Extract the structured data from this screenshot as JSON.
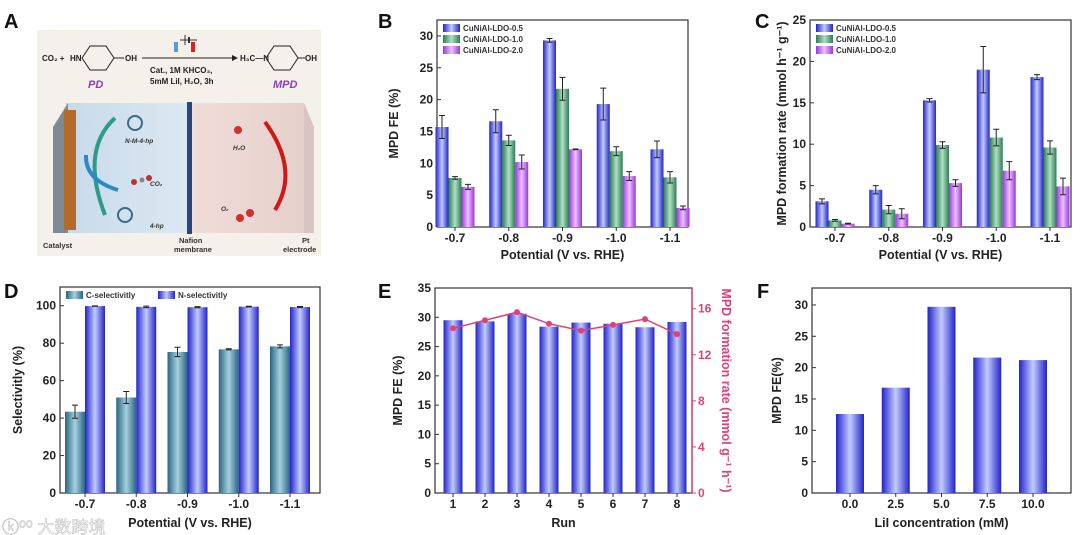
{
  "panel_letters": [
    "A",
    "B",
    "C",
    "D",
    "E",
    "F"
  ],
  "scheme": {
    "reactant_prefix": "CO₂ +",
    "reactant_nh": "HN",
    "oh": "OH",
    "product_prefix": "H₃C—N",
    "conditions_line1": "Cat., 1M KHCO₃,",
    "conditions_line2": "5mM LiI, H₂O, 3h",
    "reactant_name": "PD",
    "product_name": "MPD",
    "molecules": [
      "N-M-4-hp",
      "CO₂",
      "4-hp",
      "H₂O",
      "O₂"
    ],
    "catalyst_label": "Catalyst",
    "membrane_label_1": "Nafion",
    "membrane_label_2": "membrane",
    "electrode_label_1": "Pt",
    "electrode_label_2": "electrode"
  },
  "watermark": "大数跨境",
  "colors": {
    "blue": "#2b2bd6",
    "green": "#2f8a5a",
    "purple": "#a040e0",
    "teal": "#2f6f88",
    "pink": "#e0407a"
  },
  "chart_data": [
    {
      "id": "B",
      "type": "bar",
      "categories": [
        "-0.7",
        "-0.8",
        "-0.9",
        "-1.0",
        "-1.1"
      ],
      "xlabel": "Potential (V vs. RHE)",
      "ylabel": "MPD FE (%)",
      "ylim": [
        0,
        32.5
      ],
      "yticks": [
        0,
        5,
        10,
        15,
        20,
        25,
        30
      ],
      "legend": "top-left",
      "series": [
        {
          "name": "CuNiAl-LDO-0.5",
          "color": "blue",
          "values": [
            15.7,
            16.6,
            29.3,
            19.3,
            12.2
          ],
          "errors": [
            1.8,
            1.8,
            0.3,
            2.5,
            1.3
          ]
        },
        {
          "name": "CuNiAl-LDO-1.0",
          "color": "green",
          "values": [
            7.7,
            13.6,
            21.7,
            11.9,
            7.8
          ],
          "errors": [
            0.2,
            0.8,
            1.8,
            0.7,
            0.9
          ]
        },
        {
          "name": "CuNiAl-LDO-2.0",
          "color": "purple",
          "values": [
            6.3,
            10.2,
            12.2,
            8.0,
            3.0
          ],
          "errors": [
            0.4,
            1.1,
            0.05,
            0.7,
            0.3
          ]
        }
      ]
    },
    {
      "id": "C",
      "type": "bar",
      "categories": [
        "-0.7",
        "-0.8",
        "-0.9",
        "-1.0",
        "-1.1"
      ],
      "xlabel": "Potential (V vs. RHE)",
      "ylabel": "MPD formation rate  (mmol h⁻¹ g⁻¹)",
      "ylim": [
        0,
        25
      ],
      "yticks": [
        0,
        5,
        10,
        15,
        20,
        25
      ],
      "legend": "top-left",
      "series": [
        {
          "name": "CuNiAl-LDO-0.5",
          "color": "blue",
          "values": [
            3.1,
            4.5,
            15.3,
            19.0,
            18.1
          ],
          "errors": [
            0.3,
            0.5,
            0.2,
            2.8,
            0.3
          ]
        },
        {
          "name": "CuNiAl-LDO-1.0",
          "color": "green",
          "values": [
            0.8,
            2.1,
            9.9,
            10.8,
            9.6
          ],
          "errors": [
            0.1,
            0.5,
            0.4,
            1.0,
            0.8
          ]
        },
        {
          "name": "CuNiAl-LDO-2.0",
          "color": "purple",
          "values": [
            0.4,
            1.6,
            5.3,
            6.8,
            4.9
          ],
          "errors": [
            0.05,
            0.6,
            0.4,
            1.1,
            1.0
          ]
        }
      ]
    },
    {
      "id": "D",
      "type": "bar",
      "categories": [
        "-0.7",
        "-0.8",
        "-0.9",
        "-1.0",
        "-1.1"
      ],
      "xlabel": "Potential (V vs. RHE)",
      "ylabel": "Selectivitly (%)",
      "ylim": [
        0,
        110
      ],
      "yticks": [
        0,
        20,
        40,
        60,
        80,
        100
      ],
      "legend": "top",
      "series": [
        {
          "name": "C-selectivitly",
          "color": "teal",
          "values": [
            43.4,
            51.0,
            75.3,
            76.7,
            78.3
          ],
          "errors": [
            3.5,
            3.2,
            2.5,
            0.3,
            0.8
          ]
        },
        {
          "name": "N-selectivitly",
          "color": "blue",
          "values": [
            99.8,
            99.4,
            99.2,
            99.5,
            99.3
          ],
          "errors": [
            0.1,
            0.4,
            0.3,
            0.2,
            0.3
          ]
        }
      ]
    },
    {
      "id": "E",
      "type": "bar+line",
      "categories": [
        "1",
        "2",
        "3",
        "4",
        "5",
        "6",
        "7",
        "8"
      ],
      "xlabel": "Run",
      "ylabel": "MPD FE (%)",
      "y2label": "MPD formation rate (mmol g⁻¹ h⁻¹)",
      "ylim": [
        0,
        35
      ],
      "yticks": [
        0,
        5,
        10,
        15,
        20,
        25,
        30,
        35
      ],
      "y2lim": [
        0,
        17.8
      ],
      "y2ticks": [
        0,
        4,
        8,
        12,
        16
      ],
      "series": [
        {
          "name": "MPD FE",
          "color": "blue",
          "values": [
            29.5,
            29.3,
            30.6,
            28.4,
            29.1,
            28.9,
            28.3,
            29.2
          ]
        },
        {
          "name": "MPD formation rate",
          "color": "pink",
          "axis": "right",
          "type": "line",
          "values": [
            14.3,
            15.0,
            15.7,
            14.7,
            14.1,
            14.6,
            15.1,
            13.8
          ]
        }
      ]
    },
    {
      "id": "F",
      "type": "bar",
      "categories": [
        "0.0",
        "2.5",
        "5.0",
        "7.5",
        "10.0"
      ],
      "xlabel": "LiI concentration (mM)",
      "ylabel": "MPD FE(%)",
      "ylim": [
        0,
        32.7
      ],
      "yticks": [
        0,
        5,
        10,
        15,
        20,
        25,
        30
      ],
      "series": [
        {
          "name": "MPD FE",
          "color": "blue",
          "values": [
            12.6,
            16.8,
            29.7,
            21.6,
            21.2
          ]
        }
      ]
    }
  ]
}
